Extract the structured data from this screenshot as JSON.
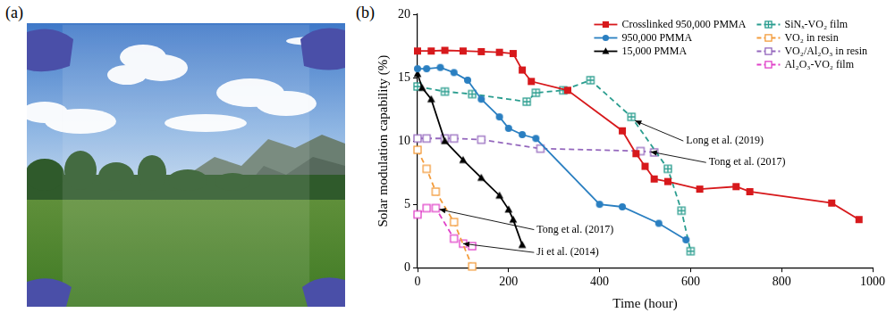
{
  "panel_labels": [
    "(a)",
    "(b)"
  ],
  "chart_data": {
    "type": "line",
    "x_label": "Time (hour)",
    "y_label": "Solar modulation capability (%)",
    "xlim": [
      0,
      1000
    ],
    "xticks": [
      0,
      200,
      400,
      600,
      800,
      1000
    ],
    "ylim": [
      0,
      20
    ],
    "yticks": [
      0,
      5,
      10,
      15,
      20
    ],
    "grid": false,
    "legend": "upper right",
    "series": [
      {
        "name": "Crosslinked 950,000 PMMA",
        "color": "#d7191c",
        "marker": "square",
        "line_style": "solid",
        "x": [
          0,
          30,
          60,
          100,
          140,
          180,
          210,
          230,
          250,
          330,
          450,
          480,
          500,
          520,
          550,
          620,
          700,
          730,
          910,
          970
        ],
        "values": [
          17.1,
          17.1,
          17.15,
          17.1,
          17.05,
          17.0,
          16.9,
          15.6,
          14.7,
          14.0,
          10.8,
          9.0,
          8.0,
          7.0,
          6.8,
          6.2,
          6.4,
          6.0,
          5.1,
          3.8
        ]
      },
      {
        "name": "950,000 PMMA",
        "color": "#2a7fc1",
        "marker": "circle",
        "line_style": "solid",
        "x": [
          0,
          20,
          50,
          80,
          110,
          140,
          180,
          200,
          230,
          260,
          400,
          450,
          530,
          590
        ],
        "values": [
          15.7,
          15.7,
          15.8,
          15.4,
          14.8,
          13.3,
          11.9,
          11.0,
          10.5,
          10.2,
          5.0,
          4.8,
          3.5,
          2.2
        ]
      },
      {
        "name": "15,000 PMMA",
        "color": "#000000",
        "marker": "triangle",
        "line_style": "solid",
        "x": [
          0,
          10,
          30,
          60,
          100,
          140,
          180,
          200,
          210,
          230
        ],
        "values": [
          15.3,
          14.2,
          13.3,
          10.0,
          8.5,
          7.1,
          5.7,
          4.6,
          3.8,
          1.8
        ]
      },
      {
        "name": "SiNₓ-VO₂ film",
        "color": "#2a9d8f",
        "marker": "crossed_square",
        "line_style": "dashed",
        "x": [
          0,
          60,
          120,
          240,
          260,
          320,
          380,
          470,
          550,
          580,
          600
        ],
        "values": [
          14.3,
          13.9,
          13.7,
          13.1,
          13.8,
          14.0,
          14.8,
          11.9,
          7.8,
          4.5,
          1.3
        ]
      },
      {
        "name": "VO₂ in resin",
        "color": "#f39c3c",
        "marker": "open_square",
        "line_style": "dashed",
        "x": [
          0,
          20,
          40,
          80,
          120
        ],
        "values": [
          9.3,
          7.8,
          6.0,
          3.6,
          0.1
        ]
      },
      {
        "name": "VO₂/Al₂O₃ in resin",
        "color": "#9467bd",
        "marker": "open_square",
        "line_style": "dashed",
        "x": [
          0,
          20,
          60,
          80,
          140,
          270,
          490,
          520
        ],
        "values": [
          10.2,
          10.2,
          10.2,
          10.2,
          10.1,
          9.4,
          9.2,
          9.1
        ]
      },
      {
        "name": "Al₂O₃-VO₂ film",
        "color": "#e040c8",
        "marker": "open_square",
        "line_style": "dashed",
        "x": [
          0,
          20,
          40,
          80,
          100,
          120
        ],
        "values": [
          4.2,
          4.7,
          4.7,
          2.3,
          1.9,
          1.7
        ]
      }
    ],
    "annotations": [
      {
        "text": "Long et al. (2019)",
        "x": 590,
        "y": 10.0,
        "arrow_to": [
          478,
          11.6
        ]
      },
      {
        "text": "Tong et al. (2017)",
        "x": 640,
        "y": 8.3,
        "arrow_to": [
          512,
          9.15
        ]
      },
      {
        "text": "Tong et al. (2017)",
        "x": 262,
        "y": 3.0,
        "arrow_to": [
          48,
          4.6
        ]
      },
      {
        "text": "Ji et al. (2014)",
        "x": 262,
        "y": 1.2,
        "arrow_to": [
          100,
          1.9
        ]
      }
    ]
  }
}
